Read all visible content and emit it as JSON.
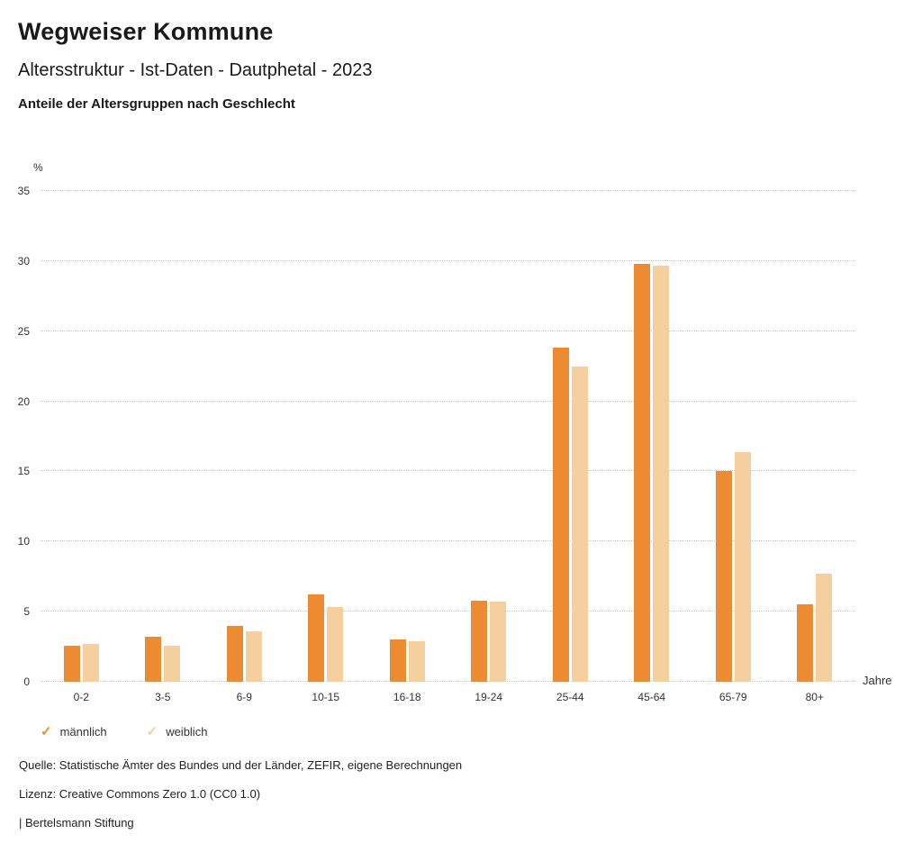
{
  "header": {
    "title": "Wegweiser Kommune",
    "subtitle": "Altersstruktur - Ist-Daten - Dautphetal - 2023",
    "chart_heading": "Anteile der Altersgruppen nach Geschlecht"
  },
  "chart_data": {
    "type": "bar",
    "title": "Anteile der Altersgruppen nach Geschlecht",
    "categories": [
      "0-2",
      "3-5",
      "6-9",
      "10-15",
      "16-18",
      "19-24",
      "25-44",
      "45-64",
      "65-79",
      "80+"
    ],
    "series": [
      {
        "name": "männlich",
        "color": "#ED8B33",
        "values": [
          2.6,
          3.2,
          4.0,
          6.2,
          3.0,
          5.8,
          23.8,
          29.8,
          15.0,
          5.5
        ]
      },
      {
        "name": "weiblich",
        "color": "#F6CF9F",
        "values": [
          2.7,
          2.6,
          3.6,
          5.3,
          2.9,
          5.7,
          22.5,
          29.7,
          16.4,
          7.7
        ]
      }
    ],
    "ylabel": "%",
    "xlabel": "Jahre",
    "ylim": [
      0,
      35
    ],
    "yticks": [
      0,
      5,
      10,
      15,
      20,
      25,
      30,
      35
    ],
    "grid": "dotted-horizontal",
    "legend_position": "bottom-left",
    "legend_marker": "✓"
  },
  "footer": {
    "source": "Quelle: Statistische Ämter des Bundes und der Länder, ZEFIR, eigene Berechnungen",
    "license": "Lizenz: Creative Commons Zero 1.0 (CC0 1.0)",
    "attribution": "| Bertelsmann Stiftung"
  }
}
